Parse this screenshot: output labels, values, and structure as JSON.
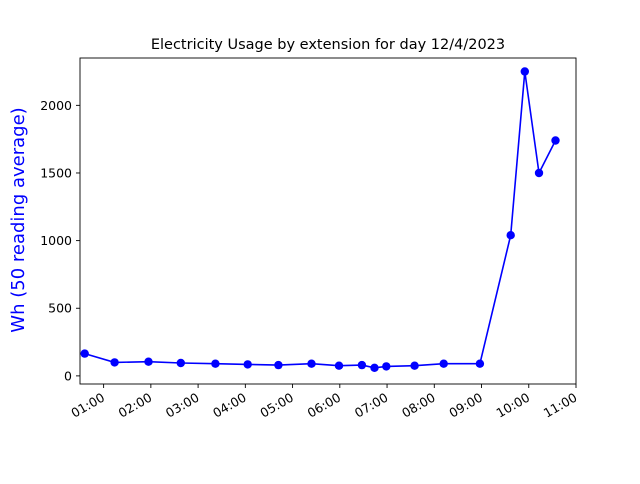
{
  "chart_data": {
    "type": "line",
    "title": "Electricity Usage by extension for day 12/4/2023",
    "xlabel": "",
    "ylabel": "Wh (50 reading average)",
    "x_ticks": [
      "01:00",
      "02:00",
      "03:00",
      "04:00",
      "05:00",
      "06:00",
      "07:00",
      "08:00",
      "09:00",
      "10:00",
      "11:00"
    ],
    "y_ticks": [
      0,
      500,
      1000,
      1500,
      2000
    ],
    "xlim": [
      "00:30",
      "11:00"
    ],
    "ylim": [
      -60,
      2350
    ],
    "grid": false,
    "series": [
      {
        "color": "#0000ff",
        "marker": "circle",
        "x": [
          "00:36",
          "01:14",
          "01:57",
          "02:38",
          "03:22",
          "04:03",
          "04:42",
          "05:24",
          "05:59",
          "06:28",
          "06:44",
          "06:59",
          "07:35",
          "08:12",
          "08:58",
          "09:37",
          "09:55",
          "10:13",
          "10:34"
        ],
        "values": [
          165,
          100,
          105,
          95,
          90,
          85,
          80,
          90,
          75,
          80,
          60,
          70,
          75,
          90,
          90,
          1040,
          2250,
          1500,
          1740
        ]
      }
    ]
  }
}
